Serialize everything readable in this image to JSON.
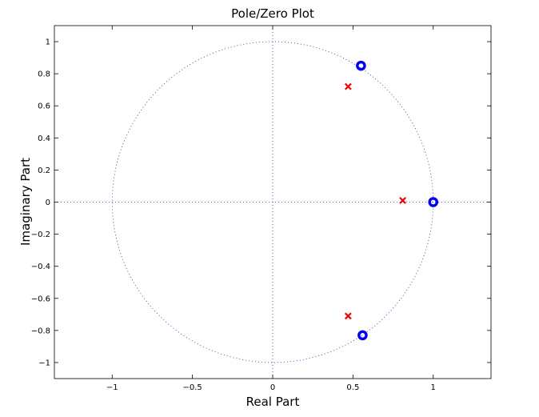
{
  "chart_data": {
    "type": "scatter",
    "title": "Pole/Zero Plot",
    "xlabel": "Real Part",
    "ylabel": "Imaginary Part",
    "xlim": [
      -1.36,
      1.36
    ],
    "ylim": [
      -1.1,
      1.1
    ],
    "xticks": [
      -1,
      -0.5,
      0,
      0.5,
      1
    ],
    "xtick_labels": [
      "−1",
      "−0.5",
      "0",
      "0.5",
      "1"
    ],
    "yticks": [
      1,
      0.8,
      0.6,
      0.4,
      0.2,
      0,
      -0.2,
      -0.4,
      -0.6,
      -0.8,
      -1
    ],
    "ytick_labels": [
      "1",
      "0.8",
      "0.6",
      "0.4",
      "0.2",
      "0",
      "−0.2",
      "−0.4",
      "−0.6",
      "−0.8",
      "−1"
    ],
    "unit_circle": true,
    "grid": false,
    "series": [
      {
        "marker": "o",
        "color": "#0000ee",
        "points": [
          [
            0.55,
            0.85
          ],
          [
            1.0,
            0.0
          ],
          [
            0.56,
            -0.83
          ]
        ]
      },
      {
        "marker": "x",
        "color": "#ee0000",
        "points": [
          [
            0.47,
            0.72
          ],
          [
            0.81,
            0.01
          ],
          [
            0.47,
            -0.71
          ]
        ]
      }
    ]
  }
}
